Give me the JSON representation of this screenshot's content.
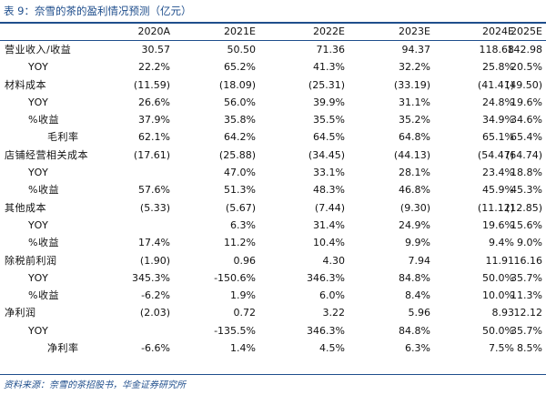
{
  "title": "表 9：奈雪的茶的盈利情况预测（亿元）",
  "columns": [
    "2020A",
    "2021E",
    "2022E",
    "2023E",
    "2024E",
    "2025E"
  ],
  "rows": [
    {
      "label": "营业收入/收益",
      "indent": 0,
      "values": [
        "30.57",
        "50.50",
        "71.36",
        "94.37",
        "118.68",
        "142.98"
      ]
    },
    {
      "label": "YOY",
      "indent": 1,
      "values": [
        "22.2%",
        "65.2%",
        "41.3%",
        "32.2%",
        "25.8%",
        "20.5%"
      ]
    },
    {
      "label": "材料成本",
      "indent": 0,
      "values": [
        "(11.59)",
        "(18.09)",
        "(25.31)",
        "(33.19)",
        "(41.41)",
        "(49.50)"
      ]
    },
    {
      "label": "YOY",
      "indent": 1,
      "values": [
        "26.6%",
        "56.0%",
        "39.9%",
        "31.1%",
        "24.8%",
        "19.6%"
      ]
    },
    {
      "label": "%收益",
      "indent": 1,
      "values": [
        "37.9%",
        "35.8%",
        "35.5%",
        "35.2%",
        "34.9%",
        "34.6%"
      ]
    },
    {
      "label": "毛利率",
      "indent": 2,
      "values": [
        "62.1%",
        "64.2%",
        "64.5%",
        "64.8%",
        "65.1%",
        "65.4%"
      ]
    },
    {
      "label": "店铺经营相关成本",
      "indent": 0,
      "values": [
        "(17.61)",
        "(25.88)",
        "(34.45)",
        "(44.13)",
        "(54.47)",
        "(64.74)"
      ]
    },
    {
      "label": "YOY",
      "indent": 1,
      "values": [
        "",
        "47.0%",
        "33.1%",
        "28.1%",
        "23.4%",
        "18.8%"
      ]
    },
    {
      "label": "%收益",
      "indent": 1,
      "values": [
        "57.6%",
        "51.3%",
        "48.3%",
        "46.8%",
        "45.9%",
        "45.3%"
      ]
    },
    {
      "label": "其他成本",
      "indent": 0,
      "values": [
        "(5.33)",
        "(5.67)",
        "(7.44)",
        "(9.30)",
        "(11.12)",
        "(12.85)"
      ]
    },
    {
      "label": "YOY",
      "indent": 1,
      "values": [
        "",
        "6.3%",
        "31.4%",
        "24.9%",
        "19.6%",
        "15.6%"
      ]
    },
    {
      "label": "%收益",
      "indent": 1,
      "values": [
        "17.4%",
        "11.2%",
        "10.4%",
        "9.9%",
        "9.4%",
        "9.0%"
      ]
    },
    {
      "label": "除税前利润",
      "indent": 0,
      "values": [
        "(1.90)",
        "0.96",
        "4.30",
        "7.94",
        "11.91",
        "16.16"
      ]
    },
    {
      "label": "YOY",
      "indent": 1,
      "values": [
        "345.3%",
        "-150.6%",
        "346.3%",
        "84.8%",
        "50.0%",
        "35.7%"
      ]
    },
    {
      "label": "%收益",
      "indent": 1,
      "values": [
        "-6.2%",
        "1.9%",
        "6.0%",
        "8.4%",
        "10.0%",
        "11.3%"
      ]
    },
    {
      "label": "净利润",
      "indent": 0,
      "values": [
        "(2.03)",
        "0.72",
        "3.22",
        "5.96",
        "8.93",
        "12.12"
      ]
    },
    {
      "label": "YOY",
      "indent": 1,
      "values": [
        "",
        "-135.5%",
        "346.3%",
        "84.8%",
        "50.0%",
        "35.7%"
      ]
    },
    {
      "label": "净利率",
      "indent": 2,
      "values": [
        "-6.6%",
        "1.4%",
        "4.5%",
        "6.3%",
        "7.5%",
        "8.5%"
      ]
    }
  ],
  "source": "资料来源：奈雪的茶招股书，华金证券研究所"
}
